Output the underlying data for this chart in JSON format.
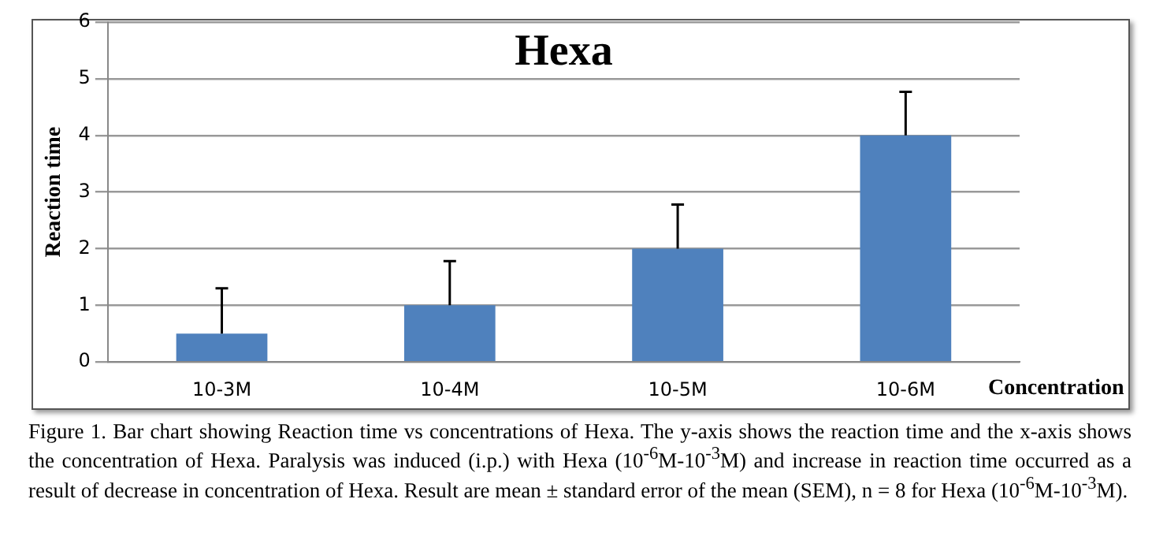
{
  "chart_data": {
    "type": "bar",
    "title": "Hexa",
    "xlabel": "Concentration",
    "ylabel": "Reaction time",
    "categories": [
      "10-3M",
      "10-4M",
      "10-5M",
      "10-6M"
    ],
    "values": [
      0.5,
      1,
      2,
      4
    ],
    "errors": [
      0.8,
      0.78,
      0.78,
      0.77
    ],
    "color": "#4f81bd",
    "ylim": [
      0,
      6
    ],
    "yticks": [
      0,
      1,
      2,
      3,
      4,
      5,
      6
    ],
    "grid": "y",
    "legend": false,
    "annotations": [
      "Figure 1. Bar chart showing Reaction time vs concentrations of Hexa. The y-axis shows the reaction time and the x-axis shows the concentration of Hexa. Paralysis was induced (i.p.) with Hexa (10$^{-6}$M-10$^{-3}$M) and increase in reaction time occurred as a result of decrease in concentration of Hexa. Result are mean ± standard error of the mean (SEM), n = 8 for Hexa (10$^{-6}$M-10$^{-3}$M)."
    ]
  }
}
